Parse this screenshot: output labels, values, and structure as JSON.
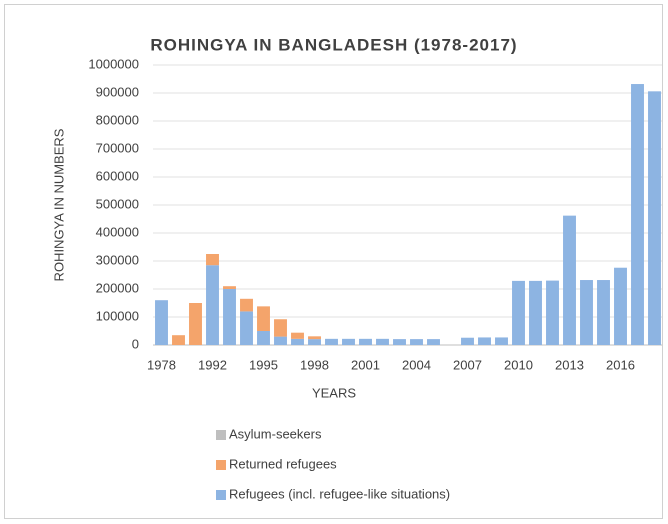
{
  "chart_data": {
    "type": "stacked_bar",
    "title": "ROHINGYA IN BANGLADESH (1978-2017)",
    "x_label": "YEARS",
    "y_label": "ROHINGYA IN NUMBERS",
    "categories": [
      "1978",
      null,
      null,
      "1992",
      null,
      null,
      "1995",
      null,
      null,
      "1998",
      null,
      null,
      "2001",
      null,
      null,
      "2004",
      null,
      null,
      "2007",
      null,
      null,
      "2010",
      null,
      null,
      "2013",
      null,
      null,
      "2016",
      null,
      null
    ],
    "series": [
      {
        "name": "Refugees (incl. refugee-like situations)",
        "color": "#8db4e2",
        "values": [
          160000,
          0,
          0,
          285000,
          200000,
          120000,
          50000,
          30000,
          22000,
          21000,
          22000,
          22000,
          22000,
          22000,
          21000,
          21000,
          21000,
          0,
          26000,
          27000,
          27000,
          229000,
          229000,
          230000,
          462000,
          232000,
          232000,
          276000,
          932000,
          906000
        ]
      },
      {
        "name": "Returned refugees",
        "color": "#f4a46b",
        "values": [
          0,
          35000,
          150000,
          40000,
          10000,
          45000,
          88000,
          62000,
          22000,
          10000,
          0,
          0,
          0,
          0,
          0,
          0,
          0,
          0,
          0,
          0,
          0,
          0,
          0,
          0,
          0,
          0,
          0,
          0,
          0,
          0
        ]
      },
      {
        "name": "Asylum-seekers",
        "color": "#bfbfbf",
        "values": [
          0,
          0,
          0,
          0,
          0,
          0,
          0,
          0,
          0,
          0,
          0,
          0,
          0,
          0,
          0,
          0,
          0,
          0,
          0,
          0,
          0,
          0,
          0,
          0,
          0,
          0,
          0,
          0,
          0,
          0
        ]
      }
    ],
    "ylim": [
      0,
      1000000
    ],
    "yticks": [
      0,
      100000,
      200000,
      300000,
      400000,
      500000,
      600000,
      700000,
      800000,
      900000,
      1000000
    ],
    "grid": true
  }
}
